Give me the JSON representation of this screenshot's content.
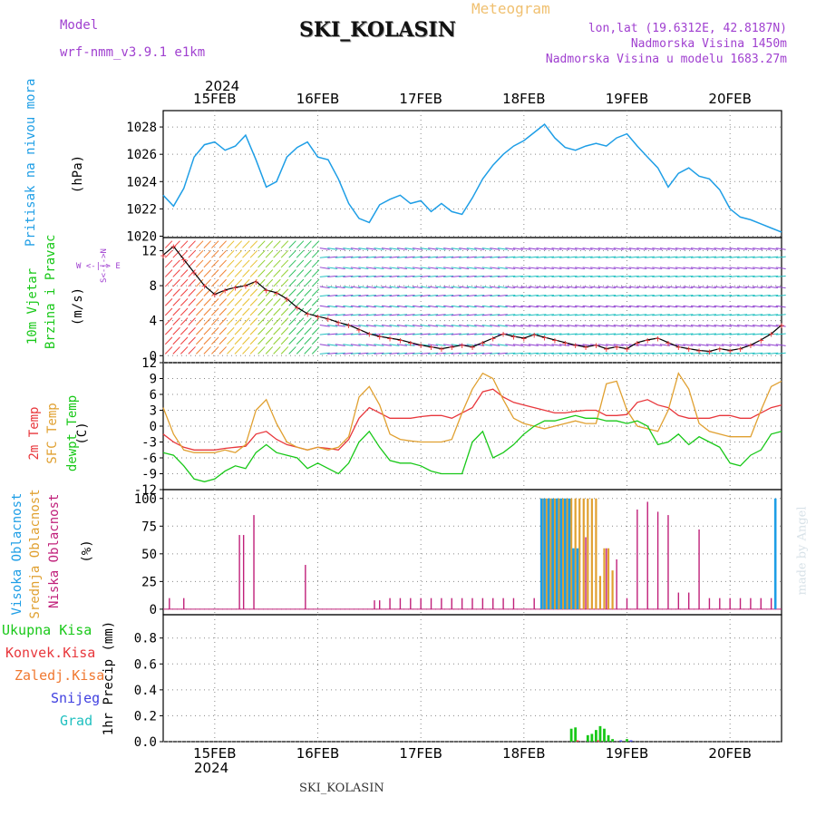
{
  "header": {
    "model_label": "Model",
    "model_value": "wrf-nmm_v3.9.1 e1km",
    "meteogram_label": "Meteogram",
    "station": "SKI_KOLASIN",
    "coords": "lon,lat (19.6312E, 42.8187N)",
    "elevation": "Nadmorska Visina 1450m",
    "model_elevation": "Nadmorska Visina u modelu 1683.27m",
    "credit": "made by Angel",
    "footer_station": "SKI_KOLASIN",
    "year_top": "2024",
    "year_bottom": "2024"
  },
  "colors": {
    "pressure": "#1e9ee6",
    "temp2m": "#e8373c",
    "sfc": "#e0a030",
    "dew": "#18c818",
    "high_cloud": "#1e9ee6",
    "mid_cloud": "#e0a030",
    "low_cloud": "#c0207a",
    "label_purple": "#a040d0",
    "meteogram_label": "#f0c070"
  },
  "panel_labels": {
    "pressure": {
      "title": "Pritisak na nivou mora",
      "unit": "(hPa)"
    },
    "wind": {
      "title1": "10m Vjetar",
      "title2": "Brzina i Pravac",
      "unit": "(m/s)",
      "compass": "W <-|-> E",
      "compass_ns": "S<-|->N"
    },
    "temp": {
      "t1": "2m Temp",
      "t2": "SFC Temp",
      "t3": "dewpt Temp",
      "unit": "(C)"
    },
    "cloud": {
      "c1": "Visoka Oblacnost",
      "c2": "Srednja Oblacnost",
      "c3": "Niska Oblacnost",
      "unit": "(%)"
    },
    "precip": {
      "p1": "Ukupna Kisa",
      "p2": "Konvek.Kisa",
      "p3": "Zaledj.Kisa",
      "p4": "Snijeg",
      "p5": "Grad",
      "unit": "1hr Precip (mm)"
    }
  },
  "chart_data": [
    {
      "type": "line",
      "panel": "pressure",
      "x_days": [
        "15FEB",
        "16FEB",
        "17FEB",
        "18FEB",
        "19FEB",
        "20FEB"
      ],
      "x": [
        14.5,
        14.6,
        14.7,
        14.8,
        14.9,
        15.0,
        15.1,
        15.2,
        15.3,
        15.4,
        15.5,
        15.6,
        15.7,
        15.8,
        15.9,
        16.0,
        16.1,
        16.2,
        16.3,
        16.4,
        16.5,
        16.6,
        16.7,
        16.8,
        16.9,
        17.0,
        17.1,
        17.2,
        17.3,
        17.4,
        17.5,
        17.6,
        17.7,
        17.8,
        17.9,
        18.0,
        18.1,
        18.2,
        18.3,
        18.4,
        18.5,
        18.6,
        18.7,
        18.8,
        18.9,
        19.0,
        19.1,
        19.2,
        19.3,
        19.4,
        19.5,
        19.6,
        19.7,
        19.8,
        19.9,
        20.0,
        20.1,
        20.2,
        20.3,
        20.4,
        20.5
      ],
      "values": [
        1023.0,
        1022.2,
        1023.5,
        1025.8,
        1026.7,
        1026.9,
        1026.3,
        1026.6,
        1027.4,
        1025.6,
        1023.6,
        1024.0,
        1025.8,
        1026.5,
        1026.9,
        1025.8,
        1025.6,
        1024.2,
        1022.4,
        1021.3,
        1021.0,
        1022.3,
        1022.7,
        1023.0,
        1022.4,
        1022.6,
        1021.8,
        1022.4,
        1021.8,
        1021.6,
        1022.8,
        1024.2,
        1025.2,
        1026.0,
        1026.6,
        1027.0,
        1027.6,
        1028.2,
        1027.2,
        1026.5,
        1026.3,
        1026.6,
        1026.8,
        1026.6,
        1027.2,
        1027.5,
        1026.6,
        1025.8,
        1025.0,
        1023.6,
        1024.6,
        1025.0,
        1024.4,
        1024.2,
        1023.4,
        1022.0,
        1021.4,
        1021.2,
        1020.9,
        1020.6,
        1020.3
      ],
      "ylabel": "(hPa)",
      "yticks": [
        1020,
        1022,
        1024,
        1026,
        1028
      ],
      "ylim": [
        1019.9,
        1029.2
      ],
      "xlim": [
        14.5,
        20.5
      ],
      "grid": true
    },
    {
      "type": "line",
      "panel": "wind",
      "x": [
        14.5,
        14.6,
        14.7,
        14.8,
        14.9,
        15.0,
        15.1,
        15.2,
        15.3,
        15.4,
        15.5,
        15.6,
        15.7,
        15.8,
        15.9,
        16.0,
        16.1,
        16.2,
        16.3,
        16.4,
        16.5,
        16.6,
        16.7,
        16.8,
        16.9,
        17.0,
        17.1,
        17.2,
        17.3,
        17.4,
        17.5,
        17.6,
        17.7,
        17.8,
        17.9,
        18.0,
        18.1,
        18.2,
        18.3,
        18.4,
        18.5,
        18.6,
        18.7,
        18.8,
        18.9,
        19.0,
        19.1,
        19.2,
        19.3,
        19.4,
        19.5,
        19.6,
        19.7,
        19.8,
        19.9,
        20.0,
        20.1,
        20.2,
        20.3,
        20.4,
        20.5
      ],
      "values": [
        11.5,
        12.5,
        11.0,
        9.5,
        8.0,
        7.0,
        7.5,
        7.8,
        8.0,
        8.5,
        7.5,
        7.2,
        6.5,
        5.5,
        4.8,
        4.5,
        4.2,
        3.8,
        3.5,
        3.0,
        2.5,
        2.2,
        2.0,
        1.8,
        1.5,
        1.2,
        1.0,
        0.8,
        1.0,
        1.2,
        1.0,
        1.5,
        2.0,
        2.5,
        2.2,
        2.0,
        2.4,
        2.1,
        1.8,
        1.5,
        1.2,
        1.0,
        1.2,
        0.8,
        1.0,
        0.8,
        1.5,
        1.8,
        2.0,
        1.5,
        1.0,
        0.8,
        0.6,
        0.5,
        0.8,
        0.6,
        0.8,
        1.2,
        1.8,
        2.5,
        3.5
      ],
      "ylabel": "(m/s)",
      "yticks": [
        0,
        4,
        8,
        12
      ],
      "ylim": [
        -0.8,
        13.5
      ],
      "xlim": [
        14.5,
        20.5
      ],
      "grid": true
    },
    {
      "type": "line",
      "panel": "temperature",
      "x": [
        14.5,
        14.6,
        14.7,
        14.8,
        14.9,
        15.0,
        15.1,
        15.2,
        15.3,
        15.4,
        15.5,
        15.6,
        15.7,
        15.8,
        15.9,
        16.0,
        16.1,
        16.2,
        16.3,
        16.4,
        16.5,
        16.6,
        16.7,
        16.8,
        16.9,
        17.0,
        17.1,
        17.2,
        17.3,
        17.4,
        17.5,
        17.6,
        17.7,
        17.8,
        17.9,
        18.0,
        18.1,
        18.2,
        18.3,
        18.4,
        18.5,
        18.6,
        18.7,
        18.8,
        18.9,
        19.0,
        19.1,
        19.2,
        19.3,
        19.4,
        19.5,
        19.6,
        19.7,
        19.8,
        19.9,
        20.0,
        20.1,
        20.2,
        20.3,
        20.4,
        20.5
      ],
      "series": [
        {
          "name": "2m Temp",
          "color": "#e8373c",
          "values": [
            -1.5,
            -3.0,
            -4.0,
            -4.5,
            -4.5,
            -4.5,
            -4.2,
            -4.0,
            -3.8,
            -1.5,
            -1.0,
            -2.5,
            -3.5,
            -4.0,
            -4.5,
            -4.0,
            -4.2,
            -4.5,
            -2.5,
            1.5,
            3.5,
            2.5,
            1.5,
            1.5,
            1.5,
            1.8,
            2.0,
            2.0,
            1.5,
            2.5,
            3.5,
            6.5,
            7.0,
            5.5,
            4.5,
            4.0,
            3.5,
            3.0,
            2.5,
            2.5,
            2.8,
            3.0,
            3.0,
            2.0,
            2.0,
            2.2,
            4.5,
            5.0,
            4.0,
            3.5,
            2.0,
            1.5,
            1.5,
            1.5,
            2.0,
            2.0,
            1.5,
            1.5,
            2.5,
            3.5,
            4.0
          ]
        },
        {
          "name": "SFC Temp",
          "color": "#e0a030",
          "values": [
            3.5,
            -1.5,
            -4.5,
            -5.0,
            -5.0,
            -5.0,
            -4.5,
            -5.0,
            -3.5,
            3.0,
            5.0,
            0.5,
            -3.0,
            -4.0,
            -4.5,
            -4.0,
            -4.5,
            -4.0,
            -2.0,
            5.5,
            7.5,
            4.0,
            -1.5,
            -2.5,
            -2.8,
            -3.0,
            -3.0,
            -3.0,
            -2.5,
            2.5,
            7.0,
            10.0,
            9.0,
            5.0,
            1.5,
            0.5,
            0.0,
            -0.5,
            0.0,
            0.5,
            1.0,
            0.5,
            0.5,
            8.0,
            8.5,
            3.0,
            0.0,
            -0.5,
            -1.0,
            3.0,
            10.0,
            7.0,
            0.5,
            -1.0,
            -1.5,
            -2.0,
            -2.0,
            -2.0,
            3.0,
            7.5,
            8.5
          ]
        },
        {
          "name": "dewpt Temp",
          "color": "#18c818",
          "values": [
            -5.0,
            -5.5,
            -7.5,
            -10.0,
            -10.5,
            -10.0,
            -8.5,
            -7.5,
            -8.0,
            -5.0,
            -3.5,
            -5.0,
            -5.5,
            -6.0,
            -8.0,
            -7.0,
            -8.0,
            -9.0,
            -7.0,
            -3.0,
            -1.0,
            -4.0,
            -6.5,
            -7.0,
            -7.0,
            -7.5,
            -8.5,
            -9.0,
            -9.0,
            -9.0,
            -3.0,
            -1.0,
            -6.0,
            -5.0,
            -3.5,
            -1.5,
            0.0,
            1.0,
            1.0,
            1.5,
            2.0,
            1.5,
            1.5,
            1.0,
            1.0,
            0.5,
            1.0,
            0.0,
            -3.5,
            -3.0,
            -1.5,
            -3.5,
            -2.0,
            -3.0,
            -4.0,
            -7.0,
            -7.5,
            -5.5,
            -4.5,
            -1.5,
            -1.0
          ]
        }
      ],
      "ylabel": "(C)",
      "yticks": [
        -12,
        -9,
        -6,
        -3,
        0,
        3,
        6,
        9,
        12
      ],
      "ylim": [
        -12,
        12
      ],
      "xlim": [
        14.5,
        20.5
      ],
      "grid": true
    },
    {
      "type": "bar",
      "panel": "cloud",
      "series": [
        {
          "name": "Niska Oblacnost",
          "color": "#c0207a",
          "x": [
            14.56,
            14.7,
            15.24,
            15.28,
            15.38,
            15.88,
            16.55,
            16.6,
            16.7,
            16.8,
            16.9,
            17.0,
            17.1,
            17.2,
            17.3,
            17.4,
            17.5,
            17.6,
            17.7,
            17.8,
            17.9,
            18.1,
            18.4,
            18.5,
            18.6,
            18.7,
            18.8,
            18.9,
            19.0,
            19.1,
            19.2,
            19.3,
            19.4,
            19.5,
            19.6,
            19.7,
            19.8,
            19.9,
            20.0,
            20.1,
            20.2,
            20.3,
            20.4
          ],
          "values": [
            10,
            10,
            67,
            67,
            85,
            40,
            8,
            8,
            10,
            10,
            10,
            10,
            10,
            10,
            10,
            10,
            10,
            10,
            10,
            10,
            10,
            10,
            67,
            10,
            65,
            60,
            55,
            45,
            10,
            90,
            97,
            88,
            85,
            15,
            15,
            72,
            10,
            10,
            10,
            10,
            10,
            10,
            10
          ]
        },
        {
          "name": "Srednja Oblacnost",
          "color": "#e0a030",
          "x": [
            18.18,
            18.22,
            18.26,
            18.3,
            18.34,
            18.38,
            18.42,
            18.46,
            18.5,
            18.54,
            18.58,
            18.62,
            18.66,
            18.7,
            18.74,
            18.78,
            18.82,
            18.86
          ],
          "values": [
            100,
            100,
            100,
            100,
            100,
            100,
            100,
            100,
            100,
            100,
            100,
            100,
            100,
            100,
            30,
            55,
            55,
            35
          ]
        },
        {
          "name": "Visoka Oblacnost",
          "color": "#1e9ee6",
          "x": [
            18.17,
            18.2,
            18.24,
            18.28,
            18.32,
            18.36,
            18.4,
            18.44,
            18.48,
            18.52,
            20.44
          ],
          "values": [
            100,
            100,
            100,
            100,
            100,
            100,
            100,
            100,
            55,
            55,
            100
          ]
        }
      ],
      "ylabel": "(%)",
      "yticks": [
        0,
        25,
        50,
        75,
        100
      ],
      "ylim": [
        -5,
        108
      ],
      "xlim": [
        14.5,
        20.5
      ],
      "grid": true
    },
    {
      "type": "bar",
      "panel": "precip",
      "series": [
        {
          "name": "Ukupna Kisa",
          "color": "#18c818",
          "x": [
            18.46,
            18.5,
            18.62,
            18.66,
            18.7,
            18.74,
            18.78,
            18.82,
            18.86,
            19.0
          ],
          "values": [
            0.1,
            0.11,
            0.05,
            0.06,
            0.09,
            0.12,
            0.1,
            0.05,
            0.02,
            0.02
          ]
        },
        {
          "name": "Konvek.Kisa",
          "color": "#e8373c",
          "x": [
            18.52,
            18.72
          ],
          "values": [
            0.01,
            0.01
          ]
        },
        {
          "name": "Snijeg",
          "color": "#4040e0",
          "x": [
            18.94,
            19.04
          ],
          "values": [
            0.01,
            0.01
          ]
        }
      ],
      "ylabel": "1hr Precip (mm)",
      "yticks": [
        0.0,
        0.2,
        0.4,
        0.6,
        0.8
      ],
      "ylim": [
        0.0,
        0.98
      ],
      "xlim": [
        14.5,
        20.5
      ],
      "grid": true
    }
  ]
}
